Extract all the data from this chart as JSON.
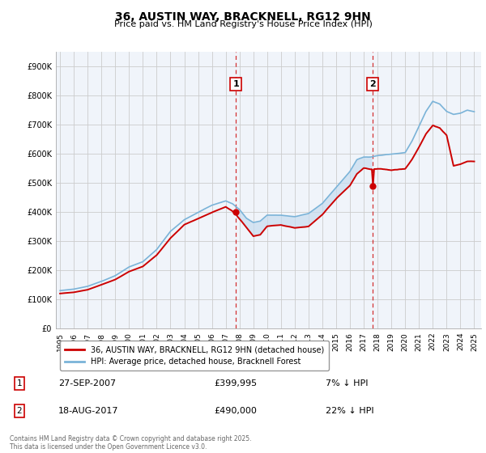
{
  "title": "36, AUSTIN WAY, BRACKNELL, RG12 9HN",
  "subtitle": "Price paid vs. HM Land Registry's House Price Index (HPI)",
  "ylim": [
    0,
    950000
  ],
  "yticks": [
    0,
    100000,
    200000,
    300000,
    400000,
    500000,
    600000,
    700000,
    800000,
    900000
  ],
  "ytick_labels": [
    "£0",
    "£100K",
    "£200K",
    "£300K",
    "£400K",
    "£500K",
    "£600K",
    "£700K",
    "£800K",
    "£900K"
  ],
  "xlim_start": 1994.7,
  "xlim_end": 2025.5,
  "background_color": "#ffffff",
  "plot_bg_color": "#f0f4fa",
  "grid_color": "#cccccc",
  "hpi_line_color": "#7ab3d8",
  "shade_color": "#c8ddf0",
  "price_line_color": "#cc0000",
  "sale1_date": 2007.74,
  "sale1_price": 399995,
  "sale2_date": 2017.63,
  "sale2_price": 490000,
  "legend_line1": "36, AUSTIN WAY, BRACKNELL, RG12 9HN (detached house)",
  "legend_line2": "HPI: Average price, detached house, Bracknell Forest",
  "table_row1": [
    "1",
    "27-SEP-2007",
    "£399,995",
    "7% ↓ HPI"
  ],
  "table_row2": [
    "2",
    "18-AUG-2017",
    "£490,000",
    "22% ↓ HPI"
  ],
  "footer": "Contains HM Land Registry data © Crown copyright and database right 2025.\nThis data is licensed under the Open Government Licence v3.0."
}
